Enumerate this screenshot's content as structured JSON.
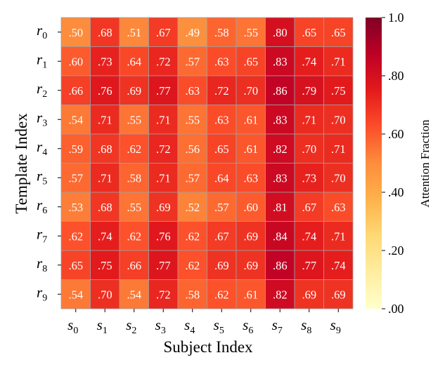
{
  "chart_data": {
    "type": "heatmap",
    "xlabel": "Subject Index",
    "ylabel": "Template Index",
    "x_tick_labels": [
      {
        "base": "s",
        "sub": "0"
      },
      {
        "base": "s",
        "sub": "1"
      },
      {
        "base": "s",
        "sub": "2"
      },
      {
        "base": "s",
        "sub": "3"
      },
      {
        "base": "s",
        "sub": "4"
      },
      {
        "base": "s",
        "sub": "5"
      },
      {
        "base": "s",
        "sub": "6"
      },
      {
        "base": "s",
        "sub": "7"
      },
      {
        "base": "s",
        "sub": "8"
      },
      {
        "base": "s",
        "sub": "9"
      }
    ],
    "y_tick_labels": [
      {
        "base": "r",
        "sub": "0"
      },
      {
        "base": "r",
        "sub": "1"
      },
      {
        "base": "r",
        "sub": "2"
      },
      {
        "base": "r",
        "sub": "3"
      },
      {
        "base": "r",
        "sub": "4"
      },
      {
        "base": "r",
        "sub": "5"
      },
      {
        "base": "r",
        "sub": "6"
      },
      {
        "base": "r",
        "sub": "7"
      },
      {
        "base": "r",
        "sub": "8"
      },
      {
        "base": "r",
        "sub": "9"
      }
    ],
    "values": [
      [
        0.5,
        0.68,
        0.51,
        0.67,
        0.49,
        0.58,
        0.55,
        0.8,
        0.65,
        0.65
      ],
      [
        0.6,
        0.73,
        0.64,
        0.72,
        0.57,
        0.63,
        0.65,
        0.83,
        0.74,
        0.71
      ],
      [
        0.66,
        0.76,
        0.69,
        0.77,
        0.63,
        0.72,
        0.7,
        0.86,
        0.79,
        0.75
      ],
      [
        0.54,
        0.71,
        0.55,
        0.71,
        0.55,
        0.63,
        0.61,
        0.83,
        0.71,
        0.7
      ],
      [
        0.59,
        0.68,
        0.62,
        0.72,
        0.56,
        0.65,
        0.61,
        0.82,
        0.7,
        0.71
      ],
      [
        0.57,
        0.71,
        0.58,
        0.71,
        0.57,
        0.64,
        0.63,
        0.83,
        0.73,
        0.7
      ],
      [
        0.53,
        0.68,
        0.55,
        0.69,
        0.52,
        0.57,
        0.6,
        0.81,
        0.67,
        0.63
      ],
      [
        0.62,
        0.74,
        0.62,
        0.76,
        0.62,
        0.67,
        0.69,
        0.84,
        0.74,
        0.71
      ],
      [
        0.65,
        0.75,
        0.66,
        0.77,
        0.62,
        0.69,
        0.69,
        0.86,
        0.77,
        0.74
      ],
      [
        0.54,
        0.7,
        0.54,
        0.72,
        0.58,
        0.62,
        0.61,
        0.82,
        0.69,
        0.69
      ]
    ],
    "value_labels": [
      [
        ".50",
        ".68",
        ".51",
        ".67",
        ".49",
        ".58",
        ".55",
        ".80",
        ".65",
        ".65"
      ],
      [
        ".60",
        ".73",
        ".64",
        ".72",
        ".57",
        ".63",
        ".65",
        ".83",
        ".74",
        ".71"
      ],
      [
        ".66",
        ".76",
        ".69",
        ".77",
        ".63",
        ".72",
        ".70",
        ".86",
        ".79",
        ".75"
      ],
      [
        ".54",
        ".71",
        ".55",
        ".71",
        ".55",
        ".63",
        ".61",
        ".83",
        ".71",
        ".70"
      ],
      [
        ".59",
        ".68",
        ".62",
        ".72",
        ".56",
        ".65",
        ".61",
        ".82",
        ".70",
        ".71"
      ],
      [
        ".57",
        ".71",
        ".58",
        ".71",
        ".57",
        ".64",
        ".63",
        ".83",
        ".73",
        ".70"
      ],
      [
        ".53",
        ".68",
        ".55",
        ".69",
        ".52",
        ".57",
        ".60",
        ".81",
        ".67",
        ".63"
      ],
      [
        ".62",
        ".74",
        ".62",
        ".76",
        ".62",
        ".67",
        ".69",
        ".84",
        ".74",
        ".71"
      ],
      [
        ".65",
        ".75",
        ".66",
        ".77",
        ".62",
        ".69",
        ".69",
        ".86",
        ".77",
        ".74"
      ],
      [
        ".54",
        ".70",
        ".54",
        ".72",
        ".58",
        ".62",
        ".61",
        ".82",
        ".69",
        ".69"
      ]
    ],
    "colorbar": {
      "label": "Attention Fraction",
      "range": [
        0.0,
        1.0
      ],
      "ticks": [
        0.0,
        0.2,
        0.4,
        0.6,
        0.8,
        1.0
      ],
      "tick_labels": [
        ".00",
        ".20",
        ".40",
        ".60",
        ".80",
        "1.0"
      ],
      "colormap": "YlOrRd",
      "color_stops": [
        "#ffffcc",
        "#ffeda0",
        "#fed976",
        "#feb24c",
        "#fd8d3c",
        "#fc4e2a",
        "#e31a1c",
        "#bd0026",
        "#800026"
      ]
    },
    "cell_text_color": "#ffffff",
    "cell_border_color": "#a0a0a0",
    "legend": "colorbar-right",
    "grid": false
  }
}
